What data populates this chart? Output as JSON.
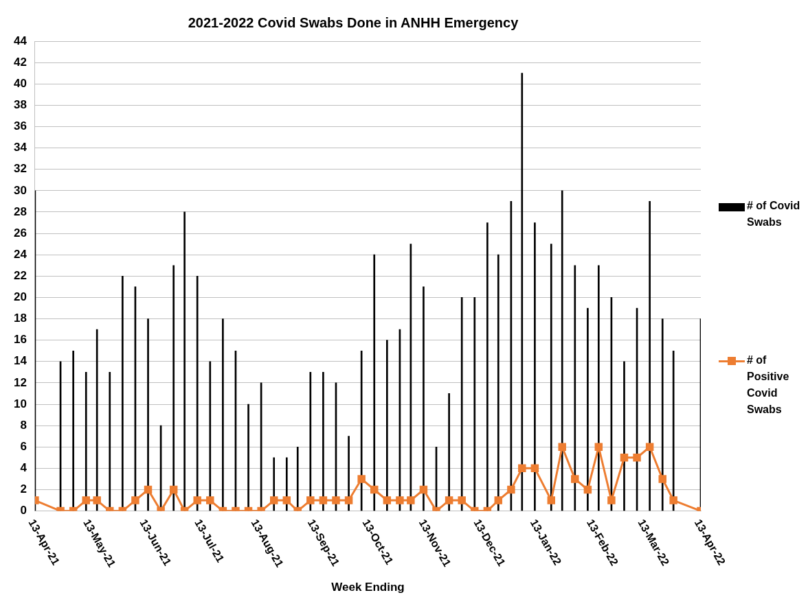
{
  "chart_data": {
    "type": "bar",
    "title": "2021-2022 Covid Swabs Done in ANHH Emergency",
    "xlabel": "Week Ending",
    "x": [
      "2021-04-13",
      "2021-04-27",
      "2021-05-04",
      "2021-05-11",
      "2021-05-17",
      "2021-05-24",
      "2021-05-31",
      "2021-06-07",
      "2021-06-14",
      "2021-06-21",
      "2021-06-28",
      "2021-07-04",
      "2021-07-11",
      "2021-07-18",
      "2021-07-25",
      "2021-08-01",
      "2021-08-08",
      "2021-08-15",
      "2021-08-22",
      "2021-08-29",
      "2021-09-04",
      "2021-09-11",
      "2021-09-18",
      "2021-09-25",
      "2021-10-02",
      "2021-10-09",
      "2021-10-16",
      "2021-10-23",
      "2021-10-30",
      "2021-11-05",
      "2021-11-12",
      "2021-11-19",
      "2021-11-26",
      "2021-12-03",
      "2021-12-10",
      "2021-12-17",
      "2021-12-23",
      "2021-12-30",
      "2022-01-05",
      "2022-01-12",
      "2022-01-21",
      "2022-01-27",
      "2022-02-03",
      "2022-02-10",
      "2022-02-16",
      "2022-02-23",
      "2022-03-02",
      "2022-03-09",
      "2022-03-16",
      "2022-03-23",
      "2022-03-29",
      "2022-04-13"
    ],
    "series": [
      {
        "name": "# of Covid Swabs",
        "color": "#000000",
        "values": [
          30,
          14,
          15,
          13,
          17,
          13,
          22,
          21,
          18,
          8,
          23,
          28,
          22,
          14,
          18,
          15,
          10,
          12,
          5,
          5,
          6,
          13,
          13,
          12,
          7,
          15,
          24,
          16,
          17,
          25,
          21,
          6,
          11,
          20,
          20,
          27,
          24,
          29,
          41,
          27,
          25,
          30,
          23,
          19,
          23,
          20,
          14,
          19,
          29,
          18,
          15,
          18
        ]
      },
      {
        "name": "# of Positive Covid Swabs",
        "type": "line",
        "color": "#ed7d31",
        "values": [
          1,
          0,
          0,
          1,
          1,
          0,
          0,
          1,
          2,
          0,
          2,
          0,
          1,
          1,
          0,
          0,
          0,
          0,
          1,
          1,
          0,
          1,
          1,
          1,
          1,
          3,
          2,
          1,
          1,
          1,
          2,
          0,
          1,
          1,
          0,
          0,
          1,
          2,
          4,
          4,
          1,
          6,
          3,
          2,
          6,
          1,
          5,
          5,
          6,
          3,
          1,
          0
        ]
      }
    ],
    "xlim": [
      "2021-04-13",
      "2022-04-13"
    ],
    "xticks": [
      {
        "value": "2021-04-13",
        "label": "13-Apr-21"
      },
      {
        "value": "2021-05-13",
        "label": "13-May-21"
      },
      {
        "value": "2021-06-13",
        "label": "13-Jun-21"
      },
      {
        "value": "2021-07-13",
        "label": "13-Jul-21"
      },
      {
        "value": "2021-08-13",
        "label": "13-Aug-21"
      },
      {
        "value": "2021-09-13",
        "label": "13-Sep-21"
      },
      {
        "value": "2021-10-13",
        "label": "13-Oct-21"
      },
      {
        "value": "2021-11-13",
        "label": "13-Nov-21"
      },
      {
        "value": "2021-12-13",
        "label": "13-Dec-21"
      },
      {
        "value": "2022-01-13",
        "label": "13-Jan-22"
      },
      {
        "value": "2022-02-13",
        "label": "13-Feb-22"
      },
      {
        "value": "2022-03-13",
        "label": "13-Mar-22"
      },
      {
        "value": "2022-04-13",
        "label": "13-Apr-22"
      }
    ],
    "ylim": [
      0,
      44
    ],
    "yticks": [
      0,
      2,
      4,
      6,
      8,
      10,
      12,
      14,
      16,
      18,
      20,
      22,
      24,
      26,
      28,
      30,
      32,
      34,
      36,
      38,
      40,
      42,
      44
    ],
    "grid": "y",
    "legend": "right",
    "marker": "square",
    "line_style": "solid"
  }
}
